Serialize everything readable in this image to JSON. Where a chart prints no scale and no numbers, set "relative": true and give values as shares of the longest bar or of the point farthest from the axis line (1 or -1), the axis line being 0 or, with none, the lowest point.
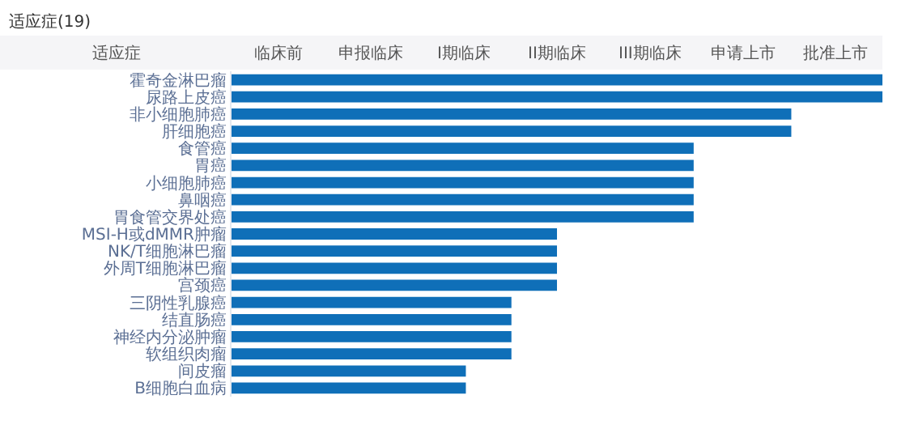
{
  "chart_data": {
    "type": "bar",
    "orientation": "horizontal",
    "relative": true,
    "title": "适应症(19)",
    "ylabel": "适应症",
    "annotations": [
      "临床前",
      "申报临床",
      "I期临床",
      "II期临床",
      "III期临床",
      "申请上市",
      "批准上市"
    ],
    "categories": [
      "霍奇金淋巴瘤",
      "尿路上皮癌",
      "非小细胞肺癌",
      "肝细胞癌",
      "食管癌",
      "胃癌",
      "小细胞肺癌",
      "鼻咽癌",
      "胃食管交界处癌",
      "MSI-H或dMMR肿瘤",
      "NK/T细胞淋巴瘤",
      "外周T细胞淋巴瘤",
      "宫颈癌",
      "三阴性乳腺癌",
      "结直肠癌",
      "神经内分泌肿瘤",
      "软组织肉瘤",
      "间皮瘤",
      "B细胞白血病"
    ],
    "values": [
      1,
      1,
      0.86,
      0.86,
      0.71,
      0.71,
      0.71,
      0.71,
      0.71,
      0.5,
      0.5,
      0.5,
      0.5,
      0.43,
      0.43,
      0.43,
      0.43,
      0.36,
      0.36
    ],
    "color": "#0f6fb8"
  }
}
